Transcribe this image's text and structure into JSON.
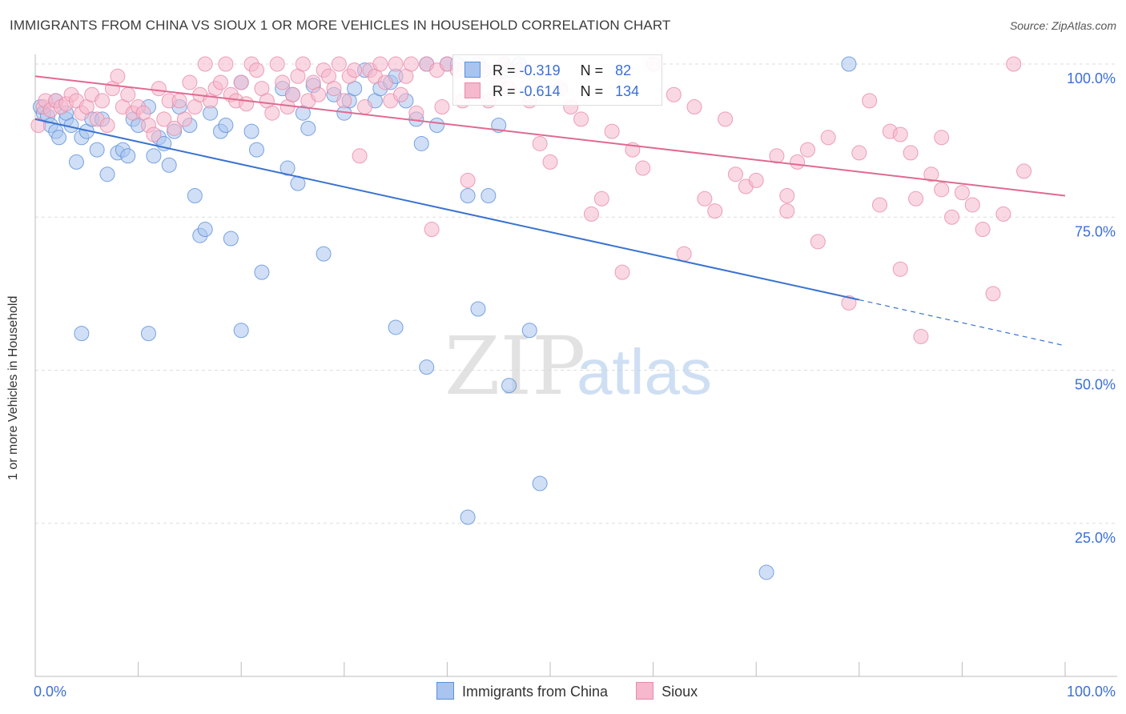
{
  "title": "IMMIGRANTS FROM CHINA VS SIOUX 1 OR MORE VEHICLES IN HOUSEHOLD CORRELATION CHART",
  "source": "Source: ZipAtlas.com",
  "watermark": {
    "zip": "ZIP",
    "atlas": "atlas"
  },
  "legend": {
    "rows": [
      {
        "r_label": "R =",
        "r_value": "-0.319",
        "n_label": "N =",
        "n_value": "82"
      },
      {
        "r_label": "R =",
        "r_value": "-0.614",
        "n_label": "N =",
        "n_value": "134"
      }
    ]
  },
  "colors": {
    "china_fill": "#a9c4ee",
    "china_stroke": "#5b8fd9",
    "china_line": "#3a73d0",
    "sioux_fill": "#f5b8cc",
    "sioux_stroke": "#e88aa8",
    "sioux_line": "#e06a90",
    "tick_label": "#3a6fd8",
    "grid": "#dddddd"
  },
  "chart_data": {
    "type": "scatter",
    "title": "IMMIGRANTS FROM CHINA VS SIOUX 1 OR MORE VEHICLES IN HOUSEHOLD CORRELATION CHART",
    "xlabel": "",
    "ylabel": "1 or more Vehicles in Household",
    "xlim": [
      0,
      100
    ],
    "ylim": [
      0,
      105
    ],
    "x_tick_labels": [
      "0.0%",
      "100.0%"
    ],
    "y_ticks": [
      25,
      50,
      75,
      100
    ],
    "y_tick_labels": [
      "25.0%",
      "50.0%",
      "75.0%",
      "100.0%"
    ],
    "grid": true,
    "legend_position": "top-center",
    "series": [
      {
        "name": "Immigrants from China",
        "stats": {
          "R": -0.319,
          "N": 82
        },
        "trend": {
          "x0": 0,
          "y0": 91,
          "x1": 80,
          "y1": 61.5,
          "dash_to_x": 100,
          "dash_to_y": 54
        },
        "points": [
          [
            0.5,
            93
          ],
          [
            0.8,
            92
          ],
          [
            1.2,
            91.5
          ],
          [
            1.5,
            90
          ],
          [
            2,
            89
          ],
          [
            2.3,
            88
          ],
          [
            3,
            91
          ],
          [
            3.5,
            90
          ],
          [
            4,
            84
          ],
          [
            4.5,
            88
          ],
          [
            5,
            89
          ],
          [
            5.5,
            91
          ],
          [
            6,
            86
          ],
          [
            6.5,
            91
          ],
          [
            7,
            82
          ],
          [
            8,
            85.5
          ],
          [
            8.5,
            86
          ],
          [
            9,
            85
          ],
          [
            9.5,
            91
          ],
          [
            10,
            90
          ],
          [
            11,
            93
          ],
          [
            11.5,
            85
          ],
          [
            12,
            88
          ],
          [
            12.5,
            87
          ],
          [
            13,
            83.5
          ],
          [
            13.5,
            89
          ],
          [
            14,
            93
          ],
          [
            15,
            90
          ],
          [
            15.5,
            78.5
          ],
          [
            16,
            72
          ],
          [
            16.5,
            73
          ],
          [
            17,
            92
          ],
          [
            18,
            89
          ],
          [
            18.5,
            90
          ],
          [
            19,
            71.5
          ],
          [
            20,
            97
          ],
          [
            21,
            89
          ],
          [
            21.5,
            86
          ],
          [
            22,
            66
          ],
          [
            24,
            96
          ],
          [
            24.5,
            83
          ],
          [
            25,
            95
          ],
          [
            25.5,
            80.5
          ],
          [
            26,
            92
          ],
          [
            26.5,
            89.5
          ],
          [
            27,
            96.5
          ],
          [
            28,
            69
          ],
          [
            29,
            95
          ],
          [
            30,
            92
          ],
          [
            30.5,
            94
          ],
          [
            31,
            96
          ],
          [
            32,
            99
          ],
          [
            33,
            94
          ],
          [
            33.5,
            96
          ],
          [
            34.5,
            97
          ],
          [
            35,
            98
          ],
          [
            36,
            94
          ],
          [
            37,
            91
          ],
          [
            37.5,
            87
          ],
          [
            38,
            100
          ],
          [
            39,
            90
          ],
          [
            40,
            100
          ],
          [
            41,
            100
          ],
          [
            42,
            78.5
          ],
          [
            44,
            78.5
          ],
          [
            45,
            90
          ],
          [
            46,
            99
          ],
          [
            47,
            100
          ],
          [
            11,
            56
          ],
          [
            20,
            56.5
          ],
          [
            35,
            57
          ],
          [
            43,
            60
          ],
          [
            48,
            56.5
          ],
          [
            38,
            50.5
          ],
          [
            46,
            47.5
          ],
          [
            49,
            31.5
          ],
          [
            42,
            26
          ],
          [
            79,
            100
          ],
          [
            71,
            17
          ],
          [
            2,
            94
          ],
          [
            3,
            92
          ],
          [
            4.5,
            56
          ]
        ]
      },
      {
        "name": "Sioux",
        "stats": {
          "R": -0.614,
          "N": 134
        },
        "trend": {
          "x0": 0,
          "y0": 98,
          "x1": 100,
          "y1": 78.5
        },
        "points": [
          [
            0.3,
            90
          ],
          [
            0.8,
            93
          ],
          [
            1,
            94
          ],
          [
            1.5,
            92.5
          ],
          [
            2,
            94
          ],
          [
            2.5,
            93
          ],
          [
            3,
            93.5
          ],
          [
            3.5,
            95
          ],
          [
            4,
            94
          ],
          [
            4.5,
            92
          ],
          [
            5,
            93
          ],
          [
            5.5,
            95
          ],
          [
            6,
            91
          ],
          [
            6.5,
            94
          ],
          [
            7,
            90
          ],
          [
            7.5,
            96
          ],
          [
            8,
            98
          ],
          [
            8.5,
            93
          ],
          [
            9,
            95
          ],
          [
            9.5,
            92
          ],
          [
            10,
            93
          ],
          [
            10.5,
            92
          ],
          [
            11,
            90
          ],
          [
            11.5,
            88.5
          ],
          [
            12,
            96
          ],
          [
            12.5,
            91
          ],
          [
            13,
            94
          ],
          [
            13.5,
            89.5
          ],
          [
            14,
            94
          ],
          [
            14.5,
            91
          ],
          [
            15,
            97
          ],
          [
            15.5,
            93
          ],
          [
            16,
            95
          ],
          [
            16.5,
            100
          ],
          [
            17,
            94
          ],
          [
            17.5,
            96
          ],
          [
            18,
            97
          ],
          [
            18.5,
            100
          ],
          [
            19,
            95
          ],
          [
            19.5,
            94
          ],
          [
            20,
            97
          ],
          [
            20.5,
            93.5
          ],
          [
            21,
            100
          ],
          [
            21.5,
            99
          ],
          [
            22,
            96
          ],
          [
            22.5,
            94
          ],
          [
            23,
            92
          ],
          [
            23.5,
            100
          ],
          [
            24,
            97
          ],
          [
            24.5,
            93
          ],
          [
            25,
            95
          ],
          [
            25.5,
            98
          ],
          [
            26,
            100
          ],
          [
            26.5,
            94
          ],
          [
            27,
            97
          ],
          [
            27.5,
            95
          ],
          [
            28,
            99
          ],
          [
            28.5,
            98
          ],
          [
            29,
            96
          ],
          [
            29.5,
            100
          ],
          [
            30,
            94
          ],
          [
            30.5,
            98
          ],
          [
            31,
            99
          ],
          [
            31.5,
            85
          ],
          [
            32,
            93
          ],
          [
            32.5,
            99
          ],
          [
            33,
            98
          ],
          [
            33.5,
            100
          ],
          [
            34,
            97
          ],
          [
            34.5,
            94
          ],
          [
            35,
            100
          ],
          [
            35.5,
            95
          ],
          [
            36,
            98
          ],
          [
            36.5,
            100
          ],
          [
            37,
            92
          ],
          [
            38,
            100
          ],
          [
            38.5,
            73
          ],
          [
            39,
            99
          ],
          [
            39.5,
            93
          ],
          [
            40,
            100
          ],
          [
            41,
            99
          ],
          [
            41.5,
            94
          ],
          [
            42,
            81
          ],
          [
            43,
            100
          ],
          [
            43.5,
            99
          ],
          [
            44,
            94
          ],
          [
            45,
            97
          ],
          [
            45.5,
            100
          ],
          [
            46,
            96
          ],
          [
            47,
            99
          ],
          [
            48,
            94
          ],
          [
            49,
            87
          ],
          [
            50,
            84
          ],
          [
            51,
            96
          ],
          [
            52,
            93
          ],
          [
            53,
            91
          ],
          [
            54,
            75.5
          ],
          [
            55,
            78
          ],
          [
            56,
            89
          ],
          [
            57,
            66
          ],
          [
            58,
            86
          ],
          [
            59,
            83
          ],
          [
            60,
            100
          ],
          [
            62,
            95
          ],
          [
            63,
            69
          ],
          [
            64,
            93
          ],
          [
            65,
            78
          ],
          [
            66,
            76
          ],
          [
            67,
            91
          ],
          [
            68,
            82
          ],
          [
            69,
            80
          ],
          [
            70,
            81
          ],
          [
            72,
            85
          ],
          [
            73,
            76
          ],
          [
            74,
            84
          ],
          [
            75,
            86
          ],
          [
            76,
            71
          ],
          [
            77,
            88
          ],
          [
            79,
            61
          ],
          [
            80,
            85.5
          ],
          [
            81,
            94
          ],
          [
            82,
            77
          ],
          [
            83,
            89
          ],
          [
            84,
            66.5
          ],
          [
            85,
            85.5
          ],
          [
            85.5,
            78
          ],
          [
            86,
            55.5
          ],
          [
            87,
            82
          ],
          [
            88,
            88
          ],
          [
            89,
            75
          ],
          [
            90,
            79
          ],
          [
            91,
            77
          ],
          [
            92,
            73
          ],
          [
            93,
            62.5
          ],
          [
            94,
            75.5
          ],
          [
            95,
            100
          ],
          [
            96,
            82.5
          ],
          [
            84,
            88.5
          ],
          [
            88,
            79.5
          ],
          [
            73,
            78.5
          ]
        ]
      }
    ]
  },
  "ylabel": "1 or more Vehicles in Household",
  "bottom_legend": [
    "Immigrants from China",
    "Sioux"
  ]
}
